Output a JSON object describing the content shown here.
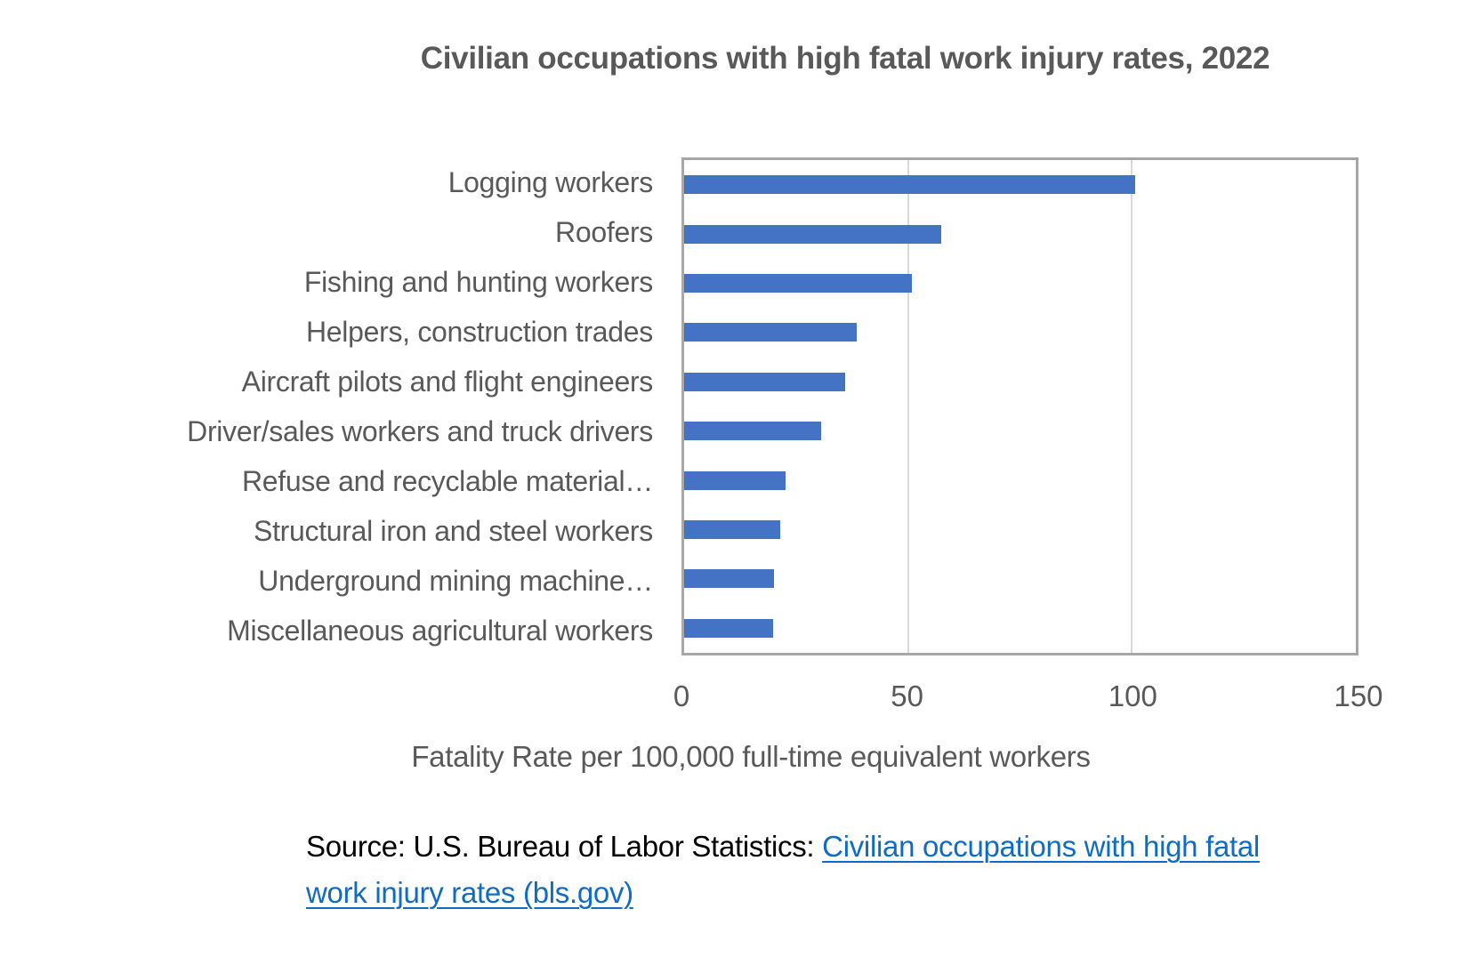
{
  "chart_data": {
    "type": "bar",
    "orientation": "horizontal",
    "title": "Civilian occupations with high fatal work injury rates, 2022",
    "categories": [
      "Logging workers",
      "Roofers",
      "Fishing and hunting workers",
      "Helpers, construction trades",
      "Aircraft pilots and flight engineers",
      "Driver/sales workers and truck drivers",
      "Refuse and recyclable material…",
      "Structural iron and steel workers",
      "Underground mining machine…",
      "Miscellaneous agricultural workers"
    ],
    "values": [
      100.7,
      57.5,
      50.9,
      38.5,
      36.0,
      30.5,
      22.7,
      21.5,
      20.0,
      19.8
    ],
    "xlabel": "Fatality Rate per 100,000 full-time equivalent workers",
    "xlim": [
      0,
      150
    ],
    "xticks": [
      0,
      50,
      100,
      150
    ],
    "gridlines_at": [
      50,
      100
    ],
    "grid": "vertical",
    "legend": "none",
    "bar_color": "#4472C4"
  },
  "source": {
    "prefix": "Source: U.S. Bureau of Labor Statistics: ",
    "link_text": "Civilian occupations with high fatal work injury rates (bls.gov)",
    "link_line1": "Civilian occupations with high fatal",
    "link_line2": "work injury rates (bls.gov)",
    "link_color": "#0F6CC4"
  },
  "colors": {
    "title_text": "#595959",
    "category_text": "#595959",
    "tick_text": "#595959",
    "plot_border": "#A6A6A6",
    "gridline": "#D9D9D9",
    "bar": "#4472C4",
    "source_text": "#000000",
    "background": "#FFFFFF"
  }
}
